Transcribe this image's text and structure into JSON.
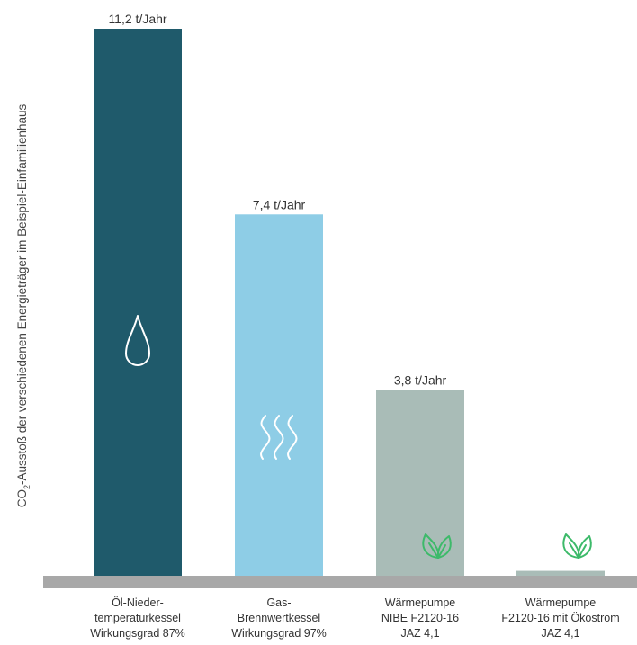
{
  "chart_data": {
    "type": "bar",
    "ylabel_main": "CO",
    "ylabel_sub": "2",
    "ylabel_rest": "-Ausstoß der verschiedenen Energieträger im Beispiel-Einfamilienhaus",
    "categories": [
      {
        "lines": [
          "Öl-Nieder-",
          "temperaturkessel",
          "Wirkungsgrad 87%"
        ]
      },
      {
        "lines": [
          "Gas-",
          "Brennwertkessel",
          "Wirkungsgrad 97%"
        ]
      },
      {
        "lines": [
          "Wärmepumpe",
          "NIBE F2120-16",
          "JAZ 4,1"
        ]
      },
      {
        "lines": [
          "Wärmepumpe",
          "F2120-16 mit Ökostrom",
          "JAZ 4,1"
        ]
      }
    ],
    "values": [
      11.2,
      7.4,
      3.8,
      0.1
    ],
    "data_labels": [
      "11,2 t/Jahr",
      "7,4 t/Jahr",
      "3,8 t/Jahr",
      ""
    ],
    "unit": "t/Jahr",
    "ylim": [
      0,
      11.2
    ],
    "colors": [
      "#1f5a6b",
      "#8ecde6",
      "#a9bcb7",
      "#a9bcb7"
    ],
    "baseline_color": "#a8a8a8",
    "icons": [
      "drop-icon",
      "heat-waves-icon",
      "leaf-icon",
      "leaf-icon"
    ],
    "icon_colors": [
      "#ffffff",
      "#ffffff",
      "#3dba6a",
      "#3dba6a"
    ],
    "grid": false,
    "legend": "none"
  }
}
